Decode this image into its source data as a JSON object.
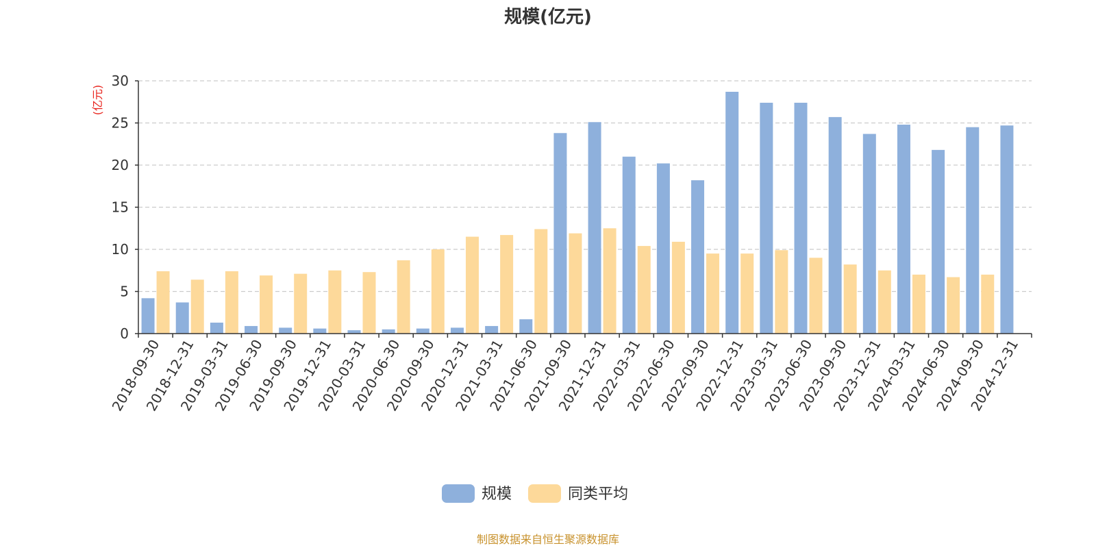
{
  "chart_data": {
    "type": "bar",
    "title": "规模(亿元)",
    "ylabel": "(亿元)",
    "ylim": [
      0,
      30
    ],
    "yticks": [
      0,
      5,
      10,
      15,
      20,
      25,
      30
    ],
    "grid": true,
    "legend_position": "bottom-center",
    "categories": [
      "2018-09-30",
      "2018-12-31",
      "2019-03-31",
      "2019-06-30",
      "2019-09-30",
      "2019-12-31",
      "2020-03-31",
      "2020-06-30",
      "2020-09-30",
      "2020-12-31",
      "2021-03-31",
      "2021-06-30",
      "2021-09-30",
      "2021-12-31",
      "2022-03-31",
      "2022-06-30",
      "2022-09-30",
      "2022-12-31",
      "2023-03-31",
      "2023-06-30",
      "2023-09-30",
      "2023-12-31",
      "2024-03-31",
      "2024-06-30",
      "2024-09-30",
      "2024-12-31"
    ],
    "series": [
      {
        "name": "规模",
        "color": "#8eb0dc",
        "values": [
          4.2,
          3.7,
          1.3,
          0.9,
          0.7,
          0.6,
          0.4,
          0.5,
          0.6,
          0.7,
          0.9,
          1.7,
          23.8,
          25.1,
          21.0,
          20.2,
          18.2,
          28.7,
          27.4,
          27.4,
          25.7,
          23.7,
          24.8,
          21.8,
          24.5,
          24.7
        ]
      },
      {
        "name": "同类平均",
        "color": "#fdd99a",
        "values": [
          7.4,
          6.4,
          7.4,
          6.9,
          7.1,
          7.5,
          7.3,
          8.7,
          10.0,
          11.5,
          11.7,
          12.4,
          11.9,
          12.5,
          10.4,
          10.9,
          9.5,
          9.5,
          9.9,
          9.0,
          8.2,
          7.5,
          7.0,
          6.7,
          7.0,
          null
        ]
      }
    ],
    "source_note": "制图数据来自恒生聚源数据库"
  },
  "colors": {
    "axis": "#333333",
    "grid": "#cccccc",
    "unit_label": "#e8221b",
    "source_note": "#c8922d"
  }
}
